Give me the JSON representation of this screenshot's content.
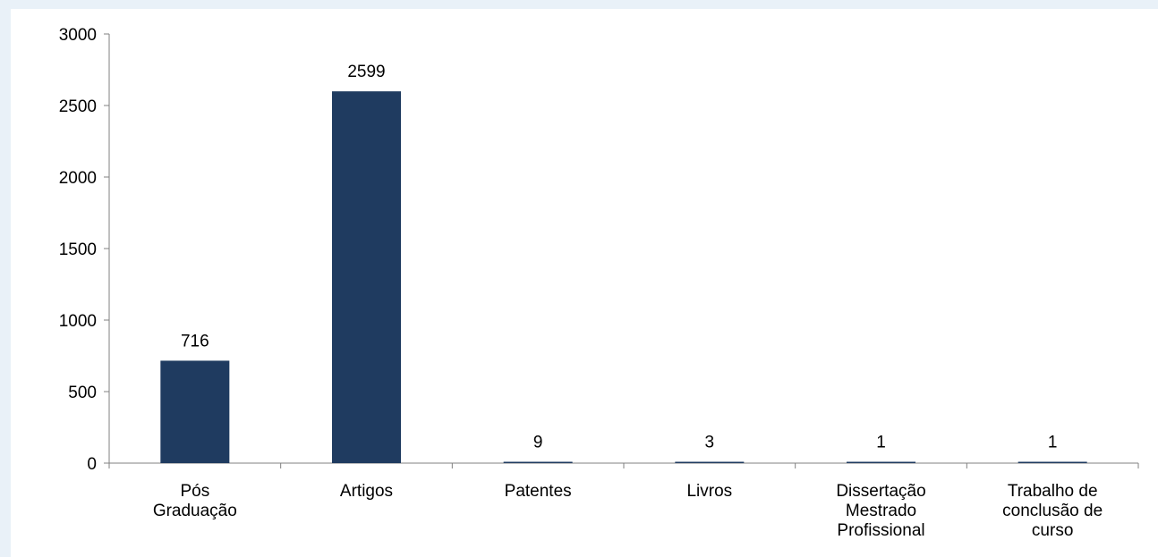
{
  "chart_data": {
    "type": "bar",
    "title": "",
    "xlabel": "",
    "ylabel": "",
    "categories": [
      [
        "Pós",
        "Graduação"
      ],
      [
        "Artigos"
      ],
      [
        "Patentes"
      ],
      [
        "Livros"
      ],
      [
        "Dissertação",
        "Mestrado",
        "Profissional"
      ],
      [
        "Trabalho de",
        "conclusão de",
        "curso"
      ]
    ],
    "values": [
      716,
      2599,
      9,
      3,
      1,
      1
    ],
    "data_labels": [
      "716",
      "2599",
      "9",
      "3",
      "1",
      "1"
    ],
    "ylim": [
      0,
      3000
    ],
    "yticks": [
      0,
      500,
      1000,
      1500,
      2000,
      2500,
      3000
    ],
    "ytick_labels": [
      "0",
      "500",
      "1000",
      "1500",
      "2000",
      "2500",
      "3000"
    ],
    "grid": false,
    "legend": "none",
    "bar_color": "#1f3b60",
    "background_color": "#e9f1f8",
    "plot_background": "#ffffff"
  }
}
